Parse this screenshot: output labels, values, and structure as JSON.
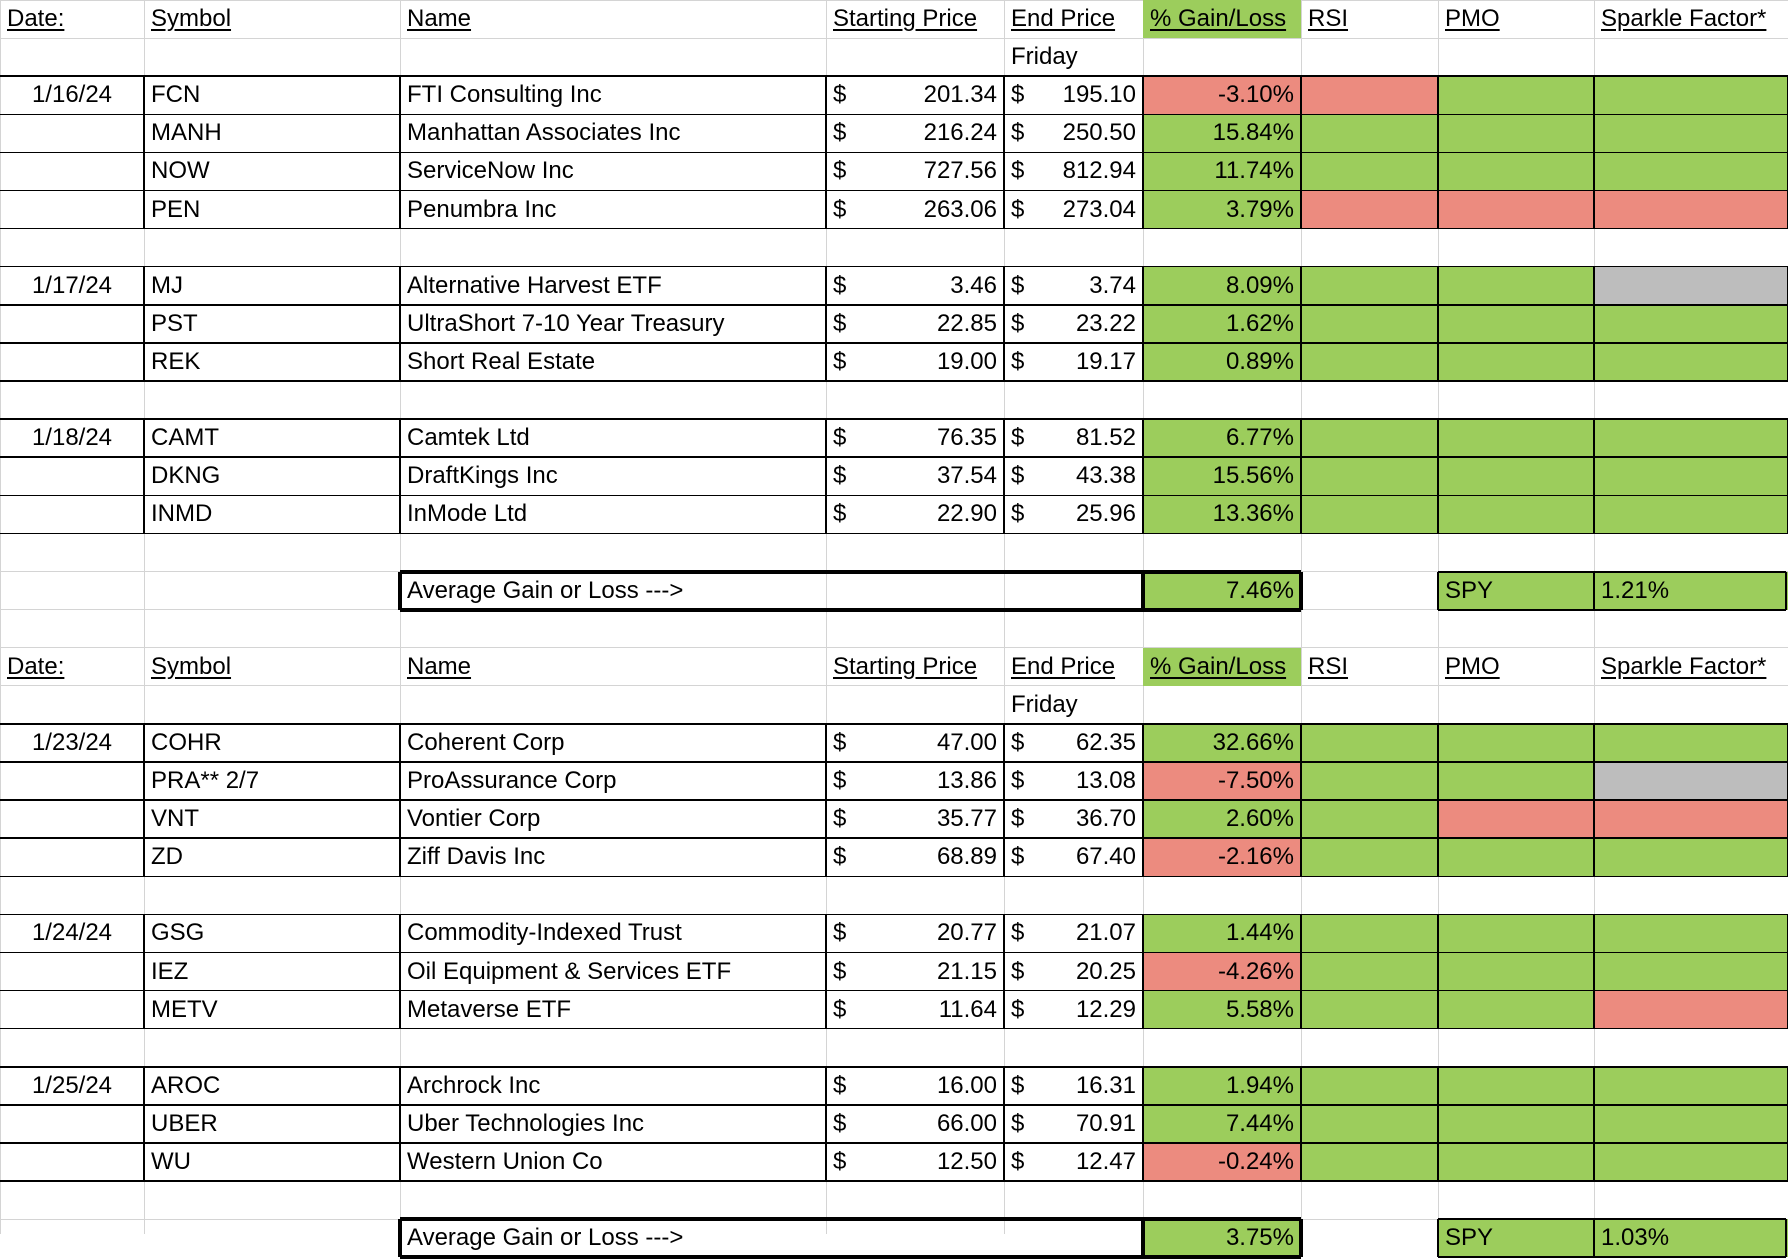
{
  "colors": {
    "green": "#9ccd5c",
    "red": "#ec8b7f",
    "gray": "#bdbdbd",
    "grid": "#d4d4d4",
    "border": "#000000"
  },
  "sections": [
    {
      "header": {
        "date": "Date:",
        "symbol": "Symbol",
        "name": "Name",
        "start": "Starting Price",
        "end": "End Price",
        "gain": "% Gain/Loss",
        "rsi": "RSI",
        "pmo": "PMO",
        "sparkle": "Sparkle Factor*"
      },
      "subheader": "Friday",
      "groups": [
        {
          "date": "1/16/24",
          "rows": [
            {
              "symbol": "FCN",
              "name": "FTI Consulting Inc",
              "start_cur": "$",
              "start": "201.34",
              "end_cur": "$",
              "end": "195.10",
              "gain": "-3.10%",
              "gain_status": "red",
              "rsi": "red",
              "pmo": "green",
              "sparkle": "green"
            },
            {
              "symbol": "MANH",
              "name": "Manhattan Associates Inc",
              "start_cur": "$",
              "start": "216.24",
              "end_cur": "$",
              "end": "250.50",
              "gain": "15.84%",
              "gain_status": "green",
              "rsi": "green",
              "pmo": "green",
              "sparkle": "green"
            },
            {
              "symbol": "NOW",
              "name": "ServiceNow Inc",
              "start_cur": "$",
              "start": "727.56",
              "end_cur": "$",
              "end": "812.94",
              "gain": "11.74%",
              "gain_status": "green",
              "rsi": "green",
              "pmo": "green",
              "sparkle": "green"
            },
            {
              "symbol": "PEN",
              "name": "Penumbra Inc",
              "start_cur": "$",
              "start": "263.06",
              "end_cur": "$",
              "end": "273.04",
              "gain": "3.79%",
              "gain_status": "green",
              "rsi": "red",
              "pmo": "red",
              "sparkle": "red"
            }
          ]
        },
        {
          "date": "1/17/24",
          "rows": [
            {
              "symbol": "MJ",
              "name": "Alternative Harvest ETF",
              "start_cur": "$",
              "start": "3.46",
              "end_cur": "$",
              "end": "3.74",
              "gain": "8.09%",
              "gain_status": "green",
              "rsi": "green",
              "pmo": "green",
              "sparkle": "gray"
            },
            {
              "symbol": "PST",
              "name": "UltraShort 7-10 Year Treasury",
              "start_cur": "$",
              "start": "22.85",
              "end_cur": "$",
              "end": "23.22",
              "gain": "1.62%",
              "gain_status": "green",
              "rsi": "green",
              "pmo": "green",
              "sparkle": "green"
            },
            {
              "symbol": "REK",
              "name": "Short Real Estate",
              "start_cur": "$",
              "start": "19.00",
              "end_cur": "$",
              "end": "19.17",
              "gain": "0.89%",
              "gain_status": "green",
              "rsi": "green",
              "pmo": "green",
              "sparkle": "green"
            }
          ]
        },
        {
          "date": "1/18/24",
          "rows": [
            {
              "symbol": "CAMT",
              "name": "Camtek Ltd",
              "start_cur": "$",
              "start": "76.35",
              "end_cur": "$",
              "end": "81.52",
              "gain": "6.77%",
              "gain_status": "green",
              "rsi": "green",
              "pmo": "green",
              "sparkle": "green"
            },
            {
              "symbol": "DKNG",
              "name": "DraftKings Inc",
              "start_cur": "$",
              "start": "37.54",
              "end_cur": "$",
              "end": "43.38",
              "gain": "15.56%",
              "gain_status": "green",
              "rsi": "green",
              "pmo": "green",
              "sparkle": "green"
            },
            {
              "symbol": "INMD",
              "name": "InMode Ltd",
              "start_cur": "$",
              "start": "22.90",
              "end_cur": "$",
              "end": "25.96",
              "gain": "13.36%",
              "gain_status": "green",
              "rsi": "green",
              "pmo": "green",
              "sparkle": "green"
            }
          ]
        }
      ],
      "summary": {
        "label": "Average Gain or Loss --->",
        "value": "7.46%",
        "spy_label": "SPY",
        "spy_value": "1.21%"
      }
    },
    {
      "header": {
        "date": "Date:",
        "symbol": "Symbol",
        "name": "Name",
        "start": "Starting Price",
        "end": "End Price",
        "gain": "% Gain/Loss",
        "rsi": "RSI",
        "pmo": "PMO",
        "sparkle": "Sparkle Factor*"
      },
      "subheader": "Friday",
      "groups": [
        {
          "date": "1/23/24",
          "rows": [
            {
              "symbol": "COHR",
              "name": "Coherent Corp",
              "start_cur": "$",
              "start": "47.00",
              "end_cur": "$",
              "end": "62.35",
              "gain": "32.66%",
              "gain_status": "green",
              "rsi": "green",
              "pmo": "green",
              "sparkle": "green"
            },
            {
              "symbol": "PRA** 2/7",
              "name": "ProAssurance Corp",
              "start_cur": "$",
              "start": "13.86",
              "end_cur": "$",
              "end": "13.08",
              "gain": "-7.50%",
              "gain_status": "red",
              "rsi": "green",
              "pmo": "green",
              "sparkle": "gray"
            },
            {
              "symbol": "VNT",
              "name": "Vontier Corp",
              "start_cur": "$",
              "start": "35.77",
              "end_cur": "$",
              "end": "36.70",
              "gain": "2.60%",
              "gain_status": "green",
              "rsi": "green",
              "pmo": "red",
              "sparkle": "red"
            },
            {
              "symbol": "ZD",
              "name": "Ziff Davis Inc",
              "start_cur": "$",
              "start": "68.89",
              "end_cur": "$",
              "end": "67.40",
              "gain": "-2.16%",
              "gain_status": "red",
              "rsi": "green",
              "pmo": "green",
              "sparkle": "green"
            }
          ]
        },
        {
          "date": "1/24/24",
          "rows": [
            {
              "symbol": "GSG",
              "name": "Commodity-Indexed Trust",
              "start_cur": "$",
              "start": "20.77",
              "end_cur": "$",
              "end": "21.07",
              "gain": "1.44%",
              "gain_status": "green",
              "rsi": "green",
              "pmo": "green",
              "sparkle": "green"
            },
            {
              "symbol": "IEZ",
              "name": "Oil Equipment & Services ETF",
              "start_cur": "$",
              "start": "21.15",
              "end_cur": "$",
              "end": "20.25",
              "gain": "-4.26%",
              "gain_status": "red",
              "rsi": "green",
              "pmo": "green",
              "sparkle": "green"
            },
            {
              "symbol": "METV",
              "name": "Metaverse ETF",
              "start_cur": "$",
              "start": "11.64",
              "end_cur": "$",
              "end": "12.29",
              "gain": "5.58%",
              "gain_status": "green",
              "rsi": "green",
              "pmo": "green",
              "sparkle": "red"
            }
          ]
        },
        {
          "date": "1/25/24",
          "rows": [
            {
              "symbol": "AROC",
              "name": "Archrock Inc",
              "start_cur": "$",
              "start": "16.00",
              "end_cur": "$",
              "end": "16.31",
              "gain": "1.94%",
              "gain_status": "green",
              "rsi": "green",
              "pmo": "green",
              "sparkle": "green"
            },
            {
              "symbol": "UBER",
              "name": "Uber Technologies Inc",
              "start_cur": "$",
              "start": "66.00",
              "end_cur": "$",
              "end": "70.91",
              "gain": "7.44%",
              "gain_status": "green",
              "rsi": "green",
              "pmo": "green",
              "sparkle": "green"
            },
            {
              "symbol": "WU",
              "name": "Western Union Co",
              "start_cur": "$",
              "start": "12.50",
              "end_cur": "$",
              "end": "12.47",
              "gain": "-0.24%",
              "gain_status": "red",
              "rsi": "green",
              "pmo": "green",
              "sparkle": "green"
            }
          ]
        }
      ],
      "summary": {
        "label": "Average Gain or Loss --->",
        "value": "3.75%",
        "spy_label": "SPY",
        "spy_value": "1.03%"
      }
    }
  ]
}
